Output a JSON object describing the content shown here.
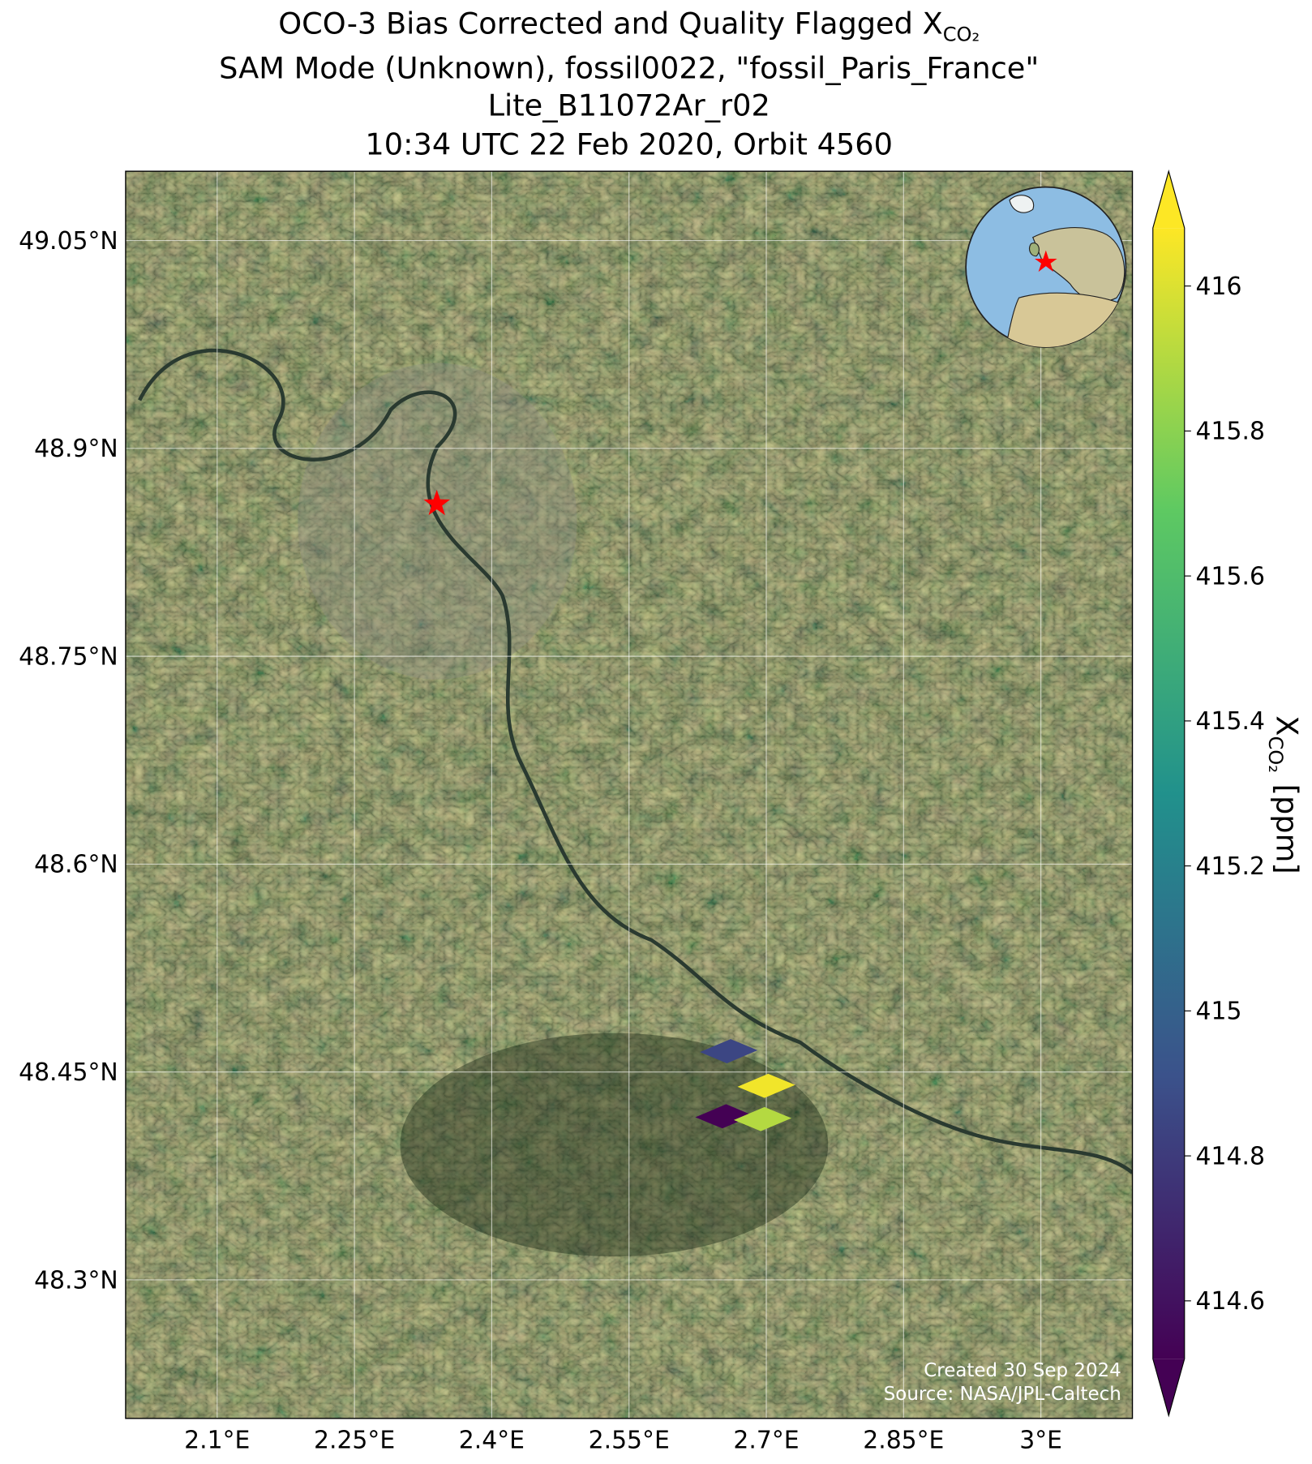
{
  "chart_data": {
    "type": "map",
    "title_lines": [
      "OCO-3 Bias Corrected and Quality Flagged X",
      "SAM Mode (Unknown), fossil0022, \"fossil_Paris_France\"",
      "Lite_B11072Ar_r02",
      "10:34 UTC 22 Feb 2020, Orbit 4560"
    ],
    "title_subscript": "CO₂",
    "xlim": [
      2.0,
      3.1
    ],
    "ylim": [
      48.2,
      49.1
    ],
    "xticks": [
      {
        "value": 2.1,
        "label": "2.1°E"
      },
      {
        "value": 2.25,
        "label": "2.25°E"
      },
      {
        "value": 2.4,
        "label": "2.4°E"
      },
      {
        "value": 2.55,
        "label": "2.55°E"
      },
      {
        "value": 2.7,
        "label": "2.7°E"
      },
      {
        "value": 2.85,
        "label": "2.85°E"
      },
      {
        "value": 3.0,
        "label": "3°E"
      }
    ],
    "yticks": [
      {
        "value": 48.3,
        "label": "48.3°N"
      },
      {
        "value": 48.45,
        "label": "48.45°N"
      },
      {
        "value": 48.6,
        "label": "48.6°N"
      },
      {
        "value": 48.75,
        "label": "48.75°N"
      },
      {
        "value": 48.9,
        "label": "48.9°N"
      },
      {
        "value": 49.05,
        "label": "49.05°N"
      }
    ],
    "grid": true,
    "target": {
      "lon": 2.34,
      "lat": 48.86,
      "color": "#ff0000"
    },
    "footprints": {
      "lon": [
        2.659,
        2.7,
        2.654,
        2.696
      ],
      "lat": [
        48.465,
        48.44,
        48.418,
        48.416
      ],
      "values": [
        414.85,
        416.05,
        414.5,
        415.9
      ]
    },
    "colormap": "viridis",
    "clim": [
      414.52,
      416.08
    ],
    "colorbar_ticks": [
      414.6,
      414.8,
      415.0,
      415.2,
      415.4,
      415.6,
      415.8,
      416.0
    ],
    "colorbar_extend": "both",
    "colorbar_label": {
      "symbol": "X",
      "subscript": "CO₂",
      "units": "[ppm]"
    },
    "credits": [
      "Created 30 Sep 2024",
      "Source: NASA/JPL-Caltech"
    ]
  }
}
